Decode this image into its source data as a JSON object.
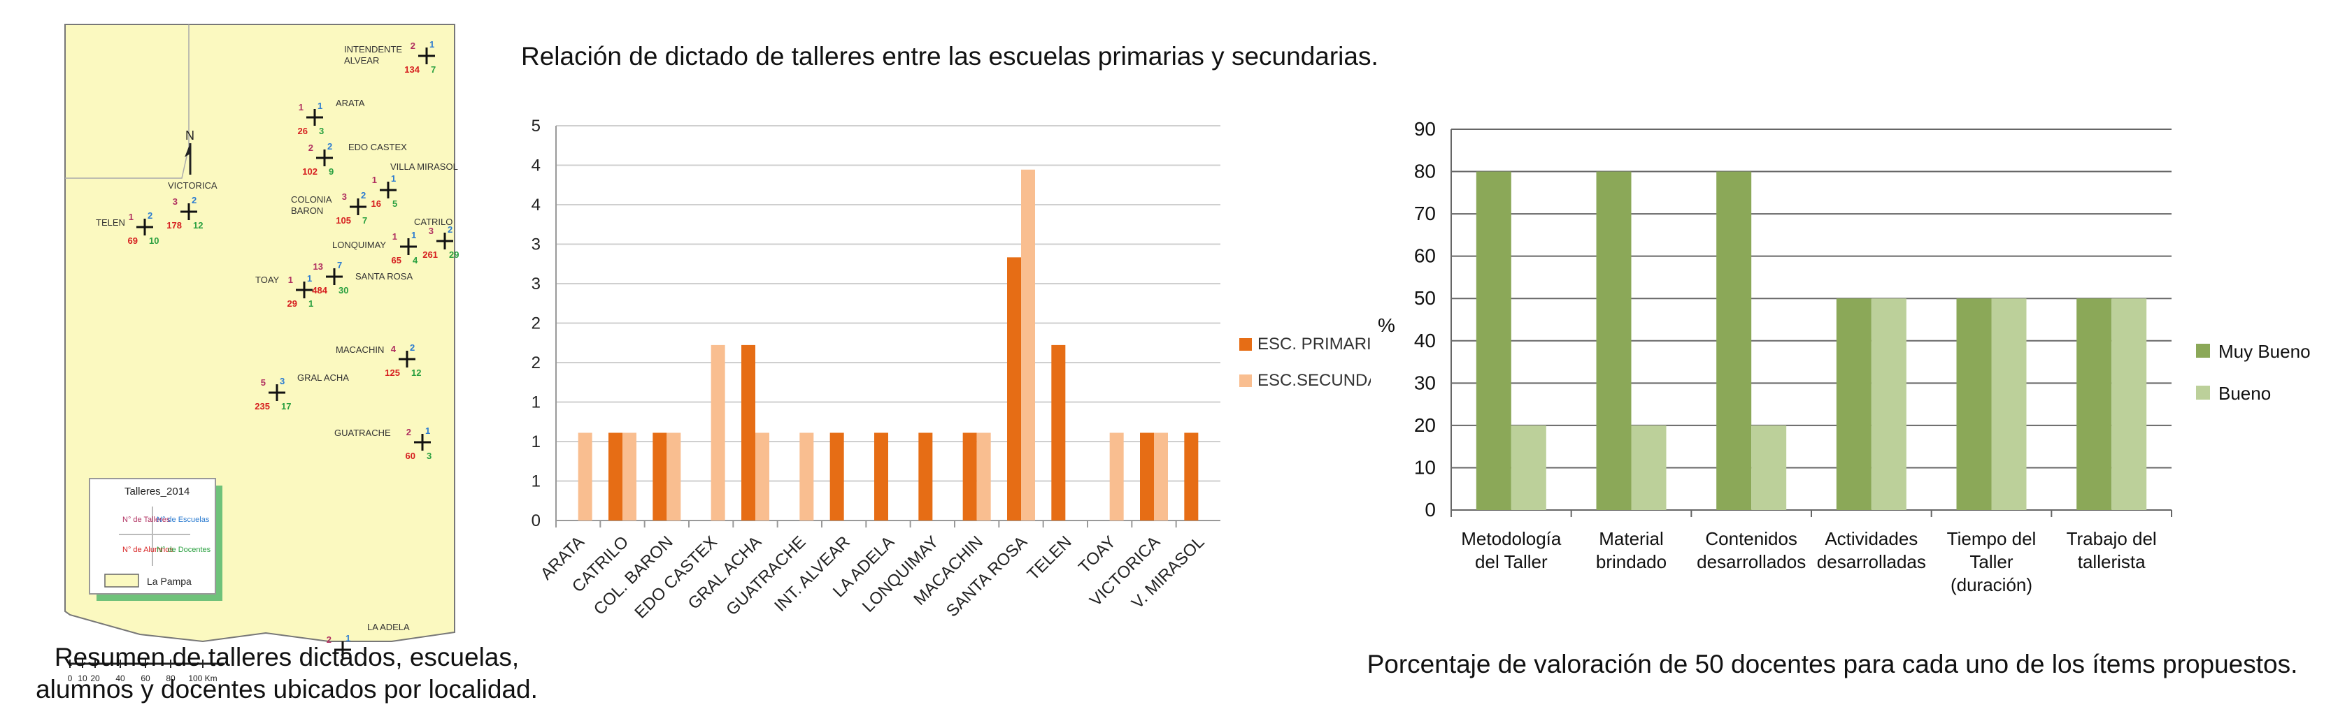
{
  "map": {
    "localities": [
      {
        "name": [
          "INTENDENTE",
          "ALVEAR"
        ],
        "talleres": "2",
        "escuelas": "1",
        "alumnos": "134",
        "docentes": "7"
      },
      {
        "name": [
          "ARATA"
        ],
        "talleres": "1",
        "escuelas": "1",
        "alumnos": "26",
        "docentes": "3"
      },
      {
        "name": [
          "EDO CASTEX"
        ],
        "talleres": "2",
        "escuelas": "2",
        "alumnos": "102",
        "docentes": "9"
      },
      {
        "name": [
          "VILLA MIRASOL"
        ],
        "talleres": "1",
        "escuelas": "1",
        "alumnos": "16",
        "docentes": "5"
      },
      {
        "name": [
          "VICTORICA"
        ],
        "talleres": "3",
        "escuelas": "2",
        "alumnos": "178",
        "docentes": "12"
      },
      {
        "name": [
          "COLONIA",
          "BARON"
        ],
        "talleres": "3",
        "escuelas": "2",
        "alumnos": "105",
        "docentes": "7"
      },
      {
        "name": [
          "TELEN"
        ],
        "talleres": "1",
        "escuelas": "2",
        "alumnos": "69",
        "docentes": "10"
      },
      {
        "name": [
          "CATRILO"
        ],
        "talleres": "3",
        "escuelas": "2",
        "alumnos": "261",
        "docentes": "29"
      },
      {
        "name": [
          "LONQUIMAY"
        ],
        "talleres": "1",
        "escuelas": "1",
        "alumnos": "65",
        "docentes": "4"
      },
      {
        "name": [
          "TOAY"
        ],
        "talleres": "1",
        "escuelas": "1",
        "alumnos": "29",
        "docentes": "1"
      },
      {
        "name": [
          "SANTA ROSA"
        ],
        "talleres": "13",
        "escuelas": "7",
        "alumnos": "484",
        "docentes": "30"
      },
      {
        "name": [
          "MACACHIN"
        ],
        "talleres": "4",
        "escuelas": "2",
        "alumnos": "125",
        "docentes": "12"
      },
      {
        "name": [
          "GRAL ACHA"
        ],
        "talleres": "5",
        "escuelas": "3",
        "alumnos": "235",
        "docentes": "17"
      },
      {
        "name": [
          "GUATRACHE"
        ],
        "talleres": "2",
        "escuelas": "1",
        "alumnos": "60",
        "docentes": "3"
      },
      {
        "name": [
          "LA ADELA"
        ],
        "talleres": "2",
        "escuelas": "1",
        "alumnos": "",
        "docentes": ""
      }
    ],
    "north_label": "N",
    "legend": {
      "title": "Talleres_2014",
      "cells": [
        "N° de Talleres",
        "N° de Escuelas",
        "N° de Alumnos",
        "N° de Docentes"
      ],
      "swatch_label": "La Pampa"
    },
    "scale": {
      "ticks": [
        "0",
        "10",
        "20",
        "40",
        "60",
        "80",
        "100 Km"
      ]
    },
    "caption": [
      "Resumen de talleres dictados, escuelas,",
      "alumnos y docentes ubicados por localidad."
    ]
  },
  "chart1": {
    "title": "Relación de dictado de talleres entre las escuelas primarias y secundarias.",
    "legend": [
      "ESC. PRIMARIAS",
      "ESC.SECUNDARIAS"
    ],
    "y_tick_labels": [
      "0",
      "1",
      "1",
      "1",
      "2",
      "2",
      "3",
      "3",
      "4",
      "4",
      "5"
    ]
  },
  "chart2": {
    "caption": "Porcentaje de valoración de 50 docentes para cada uno de los ítems propuestos.",
    "ylabel": "%",
    "legend": [
      "Muy Bueno",
      "Bueno"
    ],
    "category_lines": [
      [
        "Metodología",
        "del Taller"
      ],
      [
        "Material",
        "brindado"
      ],
      [
        "Contenidos",
        "desarrollados"
      ],
      [
        "Actividades",
        "desarrolladas"
      ],
      [
        "Tiempo del",
        "Taller",
        "(duración)"
      ],
      [
        "Trabajo del",
        "tallerista"
      ]
    ]
  },
  "colors": {
    "primarias": "#e66d15",
    "secundarias": "#f9be90",
    "muy_bueno": "#8ba858",
    "bueno": "#bcd09a",
    "map_fill": "#fbf9c0",
    "legend_green": "#6fc27a"
  },
  "chart_data": [
    {
      "type": "bar",
      "title": "Relación de dictado de talleres entre las escuelas primarias y secundarias.",
      "categories": [
        "ARATA",
        "CATRILO",
        "COL. BARON",
        "EDO CASTEX",
        "GRAL ACHA",
        "GUATRACHE",
        "INT. ALVEAR",
        "LA ADELA",
        "LONQUIMAY",
        "MACACHIN",
        "SANTA ROSA",
        "TELEN",
        "TOAY",
        "VICTORICA",
        "V. MIRASOL"
      ],
      "series": [
        {
          "name": "ESC. PRIMARIAS",
          "values": [
            0,
            1,
            1,
            0,
            2,
            0,
            1,
            1,
            1,
            1,
            3,
            2,
            0,
            1,
            1
          ]
        },
        {
          "name": "ESC.SECUNDARIAS",
          "values": [
            1,
            1,
            1,
            2,
            1,
            1,
            0,
            0,
            0,
            1,
            4,
            0,
            1,
            1,
            0
          ]
        }
      ],
      "ylim": [
        0,
        4.5
      ],
      "grid": true,
      "legend_position": "right"
    },
    {
      "type": "bar",
      "title": "",
      "ylabel": "%",
      "categories": [
        "Metodología del Taller",
        "Material brindado",
        "Contenidos desarrollados",
        "Actividades desarrolladas",
        "Tiempo del Taller (duración)",
        "Trabajo del tallerista"
      ],
      "series": [
        {
          "name": "Muy Bueno",
          "values": [
            80,
            80,
            80,
            50,
            50,
            50
          ]
        },
        {
          "name": "Bueno",
          "values": [
            20,
            20,
            20,
            50,
            50,
            50
          ]
        }
      ],
      "ylim": [
        0,
        90
      ],
      "yticks": [
        0,
        10,
        20,
        30,
        40,
        50,
        60,
        70,
        80,
        90
      ],
      "grid": true,
      "legend_position": "right"
    }
  ]
}
